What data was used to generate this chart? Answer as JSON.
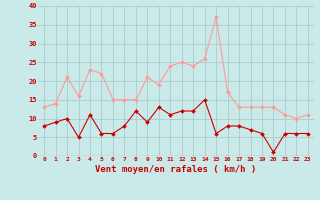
{
  "hours": [
    0,
    1,
    2,
    3,
    4,
    5,
    6,
    7,
    8,
    9,
    10,
    11,
    12,
    13,
    14,
    15,
    16,
    17,
    18,
    19,
    20,
    21,
    22,
    23
  ],
  "wind_avg": [
    8,
    9,
    10,
    5,
    11,
    6,
    6,
    8,
    12,
    9,
    13,
    11,
    12,
    12,
    15,
    6,
    8,
    8,
    7,
    6,
    1,
    6,
    6,
    6
  ],
  "wind_gust": [
    13,
    14,
    21,
    16,
    23,
    22,
    15,
    15,
    15,
    21,
    19,
    24,
    25,
    24,
    26,
    37,
    17,
    13,
    13,
    13,
    13,
    11,
    10,
    11
  ],
  "bg_color": "#caeaea",
  "grid_color": "#aacccc",
  "avg_color": "#cc0000",
  "gust_color": "#ff9999",
  "xlabel": "Vent moyen/en rafales ( km/h )",
  "xlabel_color": "#cc0000",
  "tick_color": "#cc0000",
  "ylim": [
    0,
    40
  ],
  "yticks": [
    0,
    5,
    10,
    15,
    20,
    25,
    30,
    35,
    40
  ],
  "ytick_labels": [
    "0",
    "5",
    "10",
    "15",
    "20",
    "25",
    "30",
    "35",
    "40"
  ]
}
